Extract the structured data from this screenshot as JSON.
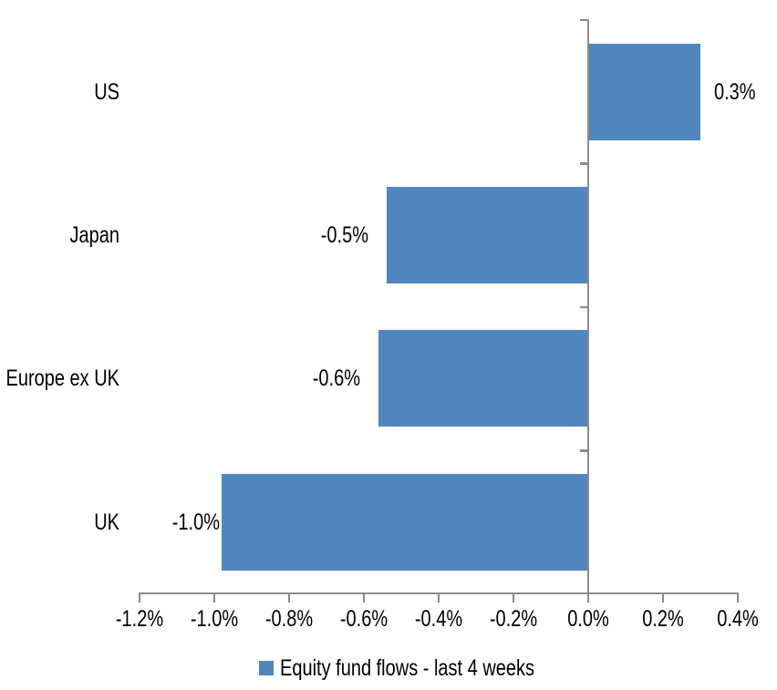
{
  "chart_data": {
    "type": "bar",
    "orientation": "horizontal",
    "title": "",
    "xlabel": "",
    "ylabel": "",
    "categories": [
      "US",
      "Japan",
      "Europe ex UK",
      "UK"
    ],
    "series": [
      {
        "name": "Equity fund flows - last 4 weeks",
        "values": [
          0.3,
          -0.5,
          -0.6,
          -1.0
        ],
        "values_precise_pct": [
          0.3,
          -0.54,
          -0.56,
          -0.98
        ],
        "data_labels": [
          "0.3%",
          "-0.5%",
          "-0.6%",
          "-1.0%"
        ]
      }
    ],
    "legend": {
      "label": "Equity fund flows - last 4 weeks",
      "position": "bottom"
    },
    "x_axis": {
      "tick_labels": [
        "-1.2%",
        "-1.0%",
        "-0.8%",
        "-0.6%",
        "-0.4%",
        "-0.2%",
        "0.0%",
        "0.2%",
        "0.4%"
      ],
      "tick_values": [
        -1.2,
        -1.0,
        -0.8,
        -0.6,
        -0.4,
        -0.2,
        0.0,
        0.2,
        0.4
      ],
      "xlim": [
        -1.2,
        0.4
      ]
    },
    "grid": false,
    "colors": {
      "bar": "#4F87BE",
      "axis": "#8C8C8C",
      "text": "#000000",
      "background": "#FFFFFF"
    }
  }
}
